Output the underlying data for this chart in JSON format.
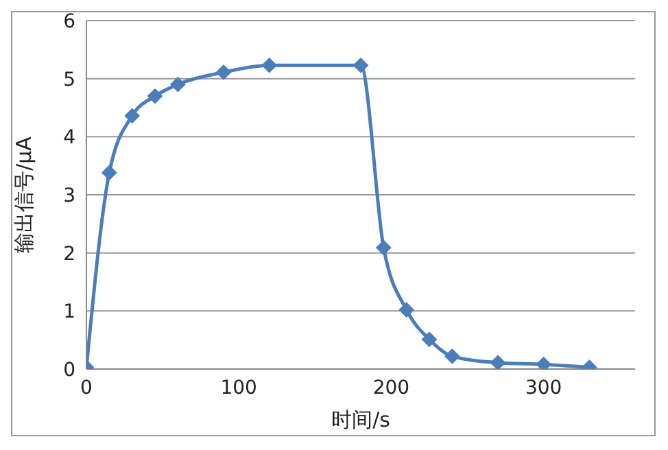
{
  "chart_data": {
    "type": "line",
    "xlabel": "时间/s",
    "ylabel": "输出信号/μA",
    "x": [
      0,
      15,
      30,
      45,
      60,
      90,
      120,
      180,
      195,
      210,
      225,
      240,
      270,
      300,
      330
    ],
    "series": [
      {
        "color": "#4a7ebb",
        "values": [
          0.03,
          3.38,
          4.36,
          4.7,
          4.9,
          5.11,
          5.23,
          5.23,
          2.09,
          1.02,
          0.51,
          0.22,
          0.11,
          0.08,
          0.03
        ]
      }
    ],
    "xlim": [
      0,
      360
    ],
    "xticks": [
      0,
      100,
      200,
      300
    ],
    "ylim": [
      0,
      6
    ],
    "yticks": [
      0,
      1,
      2,
      3,
      4,
      5,
      6
    ],
    "grid": "y",
    "legend": false,
    "marker": "diamond",
    "line_style": "solid"
  }
}
